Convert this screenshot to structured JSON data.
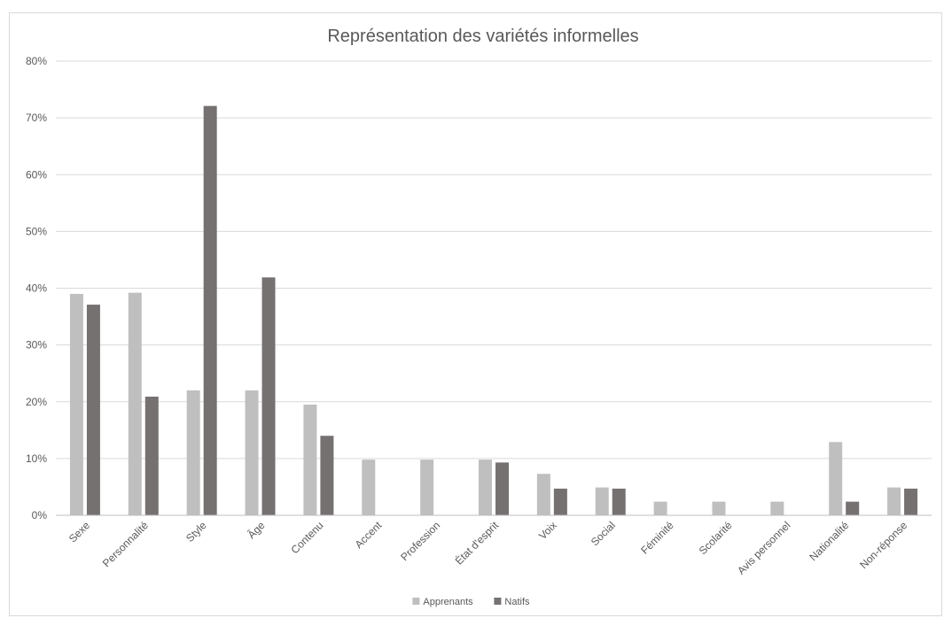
{
  "chart_data": {
    "type": "bar",
    "title": "Représentation des variétés informelles",
    "xlabel": "",
    "ylabel": "",
    "ylim": [
      0,
      80
    ],
    "y_ticks": [
      "0%",
      "10%",
      "20%",
      "30%",
      "40%",
      "50%",
      "60%",
      "70%",
      "80%"
    ],
    "y_tick_values": [
      0,
      10,
      20,
      30,
      40,
      50,
      60,
      70,
      80
    ],
    "grid": true,
    "legend_position": "bottom",
    "categories": [
      "Sexe",
      "Personnalité",
      "Style",
      "Âge",
      "Contenu",
      "Accent",
      "Profession",
      "État d'esprit",
      "Voix",
      "Social",
      "Féminité",
      "Scolarité",
      "Avis personnel",
      "Nationalité",
      "Non-réponse"
    ],
    "series": [
      {
        "name": "Apprenants",
        "color": "#bfbfbf",
        "values": [
          39,
          39.2,
          22,
          22,
          19.5,
          9.8,
          9.8,
          9.8,
          7.3,
          4.9,
          2.4,
          2.4,
          2.4,
          12.9,
          4.9
        ]
      },
      {
        "name": "Natifs",
        "color": "#767171",
        "values": [
          37.1,
          20.9,
          72.1,
          41.9,
          14,
          0,
          0,
          9.3,
          4.7,
          4.7,
          0,
          0,
          0,
          2.4,
          4.7
        ]
      }
    ]
  }
}
